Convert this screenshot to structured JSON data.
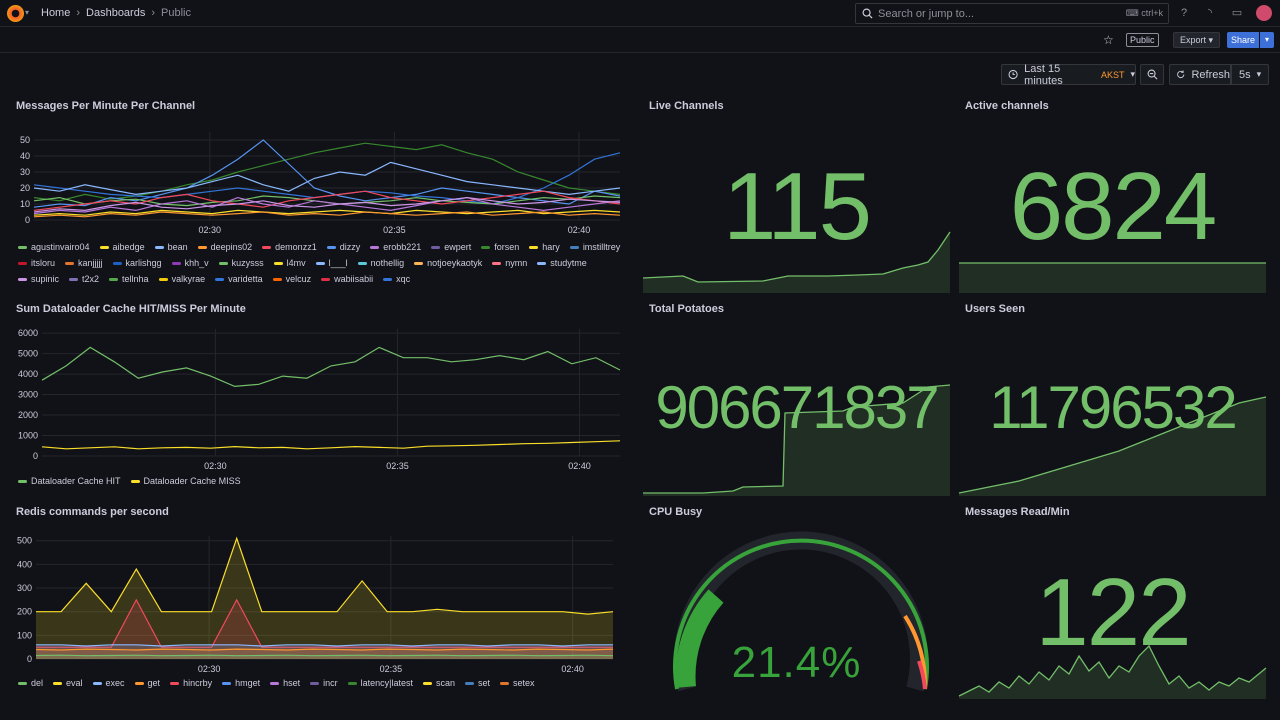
{
  "topbar": {
    "breadcrumb": [
      "Home",
      "Dashboards",
      "Public"
    ],
    "search_placeholder": "Search or jump to...",
    "search_shortcut": "ctrl+k"
  },
  "toolbar": {
    "public_tag": "Public",
    "export_label": "Export",
    "share_label": "Share",
    "time_range": "Last 15 minutes",
    "timezone": "AKST",
    "refresh_label": "Refresh",
    "refresh_interval": "5s"
  },
  "panels": {
    "messages": {
      "title": "Messages Per Minute Per Channel",
      "legend": [
        {
          "name": "agustinvairo04",
          "color": "#73bf69"
        },
        {
          "name": "aibedge",
          "color": "#fade2a"
        },
        {
          "name": "bean",
          "color": "#8ab8ff"
        },
        {
          "name": "deepins02",
          "color": "#ff9830"
        },
        {
          "name": "demonzz1",
          "color": "#f2495c"
        },
        {
          "name": "dizzy",
          "color": "#5794f2"
        },
        {
          "name": "erobb221",
          "color": "#b877d9"
        },
        {
          "name": "ewpert",
          "color": "#705da0"
        },
        {
          "name": "forsen",
          "color": "#37872d"
        },
        {
          "name": "hary",
          "color": "#fade2a"
        },
        {
          "name": "imstilltrey",
          "color": "#447ebc"
        },
        {
          "name": "itsloru",
          "color": "#c4162a"
        },
        {
          "name": "kanjjjjj",
          "color": "#e0752d"
        },
        {
          "name": "karlishgg",
          "color": "#1f60c4"
        },
        {
          "name": "khh_v",
          "color": "#8f3bb8"
        },
        {
          "name": "kuzysss",
          "color": "#73bf69"
        },
        {
          "name": "l4mv",
          "color": "#fade2a"
        },
        {
          "name": "l___l",
          "color": "#8ab8ff"
        },
        {
          "name": "nothellig",
          "color": "#5ac8d8"
        },
        {
          "name": "notjoeykaotyk",
          "color": "#ffb357"
        },
        {
          "name": "nymn",
          "color": "#ff7383"
        },
        {
          "name": "studytme",
          "color": "#8ab8ff"
        },
        {
          "name": "supinic",
          "color": "#ca95e5"
        },
        {
          "name": "t2x2",
          "color": "#806eb7"
        },
        {
          "name": "tellnha",
          "color": "#56a64b"
        },
        {
          "name": "valkyrae",
          "color": "#f2cc0c"
        },
        {
          "name": "varidetta",
          "color": "#3274d9"
        },
        {
          "name": "velcuz",
          "color": "#fa6400"
        },
        {
          "name": "wabiisabii",
          "color": "#e02f44"
        },
        {
          "name": "xqc",
          "color": "#3274d9"
        }
      ]
    },
    "cache": {
      "title": "Sum Dataloader Cache HIT/MISS Per Minute",
      "legend": [
        {
          "name": "Dataloader Cache HIT",
          "color": "#73bf69"
        },
        {
          "name": "Dataloader Cache MISS",
          "color": "#fade2a"
        }
      ]
    },
    "redis": {
      "title": "Redis commands per second",
      "legend": [
        {
          "name": "del",
          "color": "#73bf69"
        },
        {
          "name": "eval",
          "color": "#fade2a"
        },
        {
          "name": "exec",
          "color": "#8ab8ff"
        },
        {
          "name": "get",
          "color": "#ff9830"
        },
        {
          "name": "hincrby",
          "color": "#f2495c"
        },
        {
          "name": "hmget",
          "color": "#5794f2"
        },
        {
          "name": "hset",
          "color": "#b877d9"
        },
        {
          "name": "incr",
          "color": "#705da0"
        },
        {
          "name": "latency|latest",
          "color": "#37872d"
        },
        {
          "name": "scan",
          "color": "#fade2a"
        },
        {
          "name": "set",
          "color": "#447ebc"
        },
        {
          "name": "setex",
          "color": "#e0752d"
        }
      ]
    },
    "live_channels": {
      "title": "Live Channels",
      "value": "115"
    },
    "active_channels": {
      "title": "Active channels",
      "value": "6824"
    },
    "total_potatoes": {
      "title": "Total Potatoes",
      "value": "906671837"
    },
    "users_seen": {
      "title": "Users Seen",
      "value": "11796532"
    },
    "cpu_busy": {
      "title": "CPU Busy",
      "value": "21.4%",
      "percent": 21.4
    },
    "messages_read": {
      "title": "Messages Read/Min",
      "value": "122"
    }
  },
  "colors": {
    "green": "#73bf69",
    "yellow": "#fade2a",
    "orange": "#ff9830",
    "red": "#f2495c"
  },
  "chart_data": [
    {
      "type": "line",
      "title": "Messages Per Minute Per Channel",
      "yticks": [
        0,
        10,
        20,
        30,
        40,
        50
      ],
      "xticks": [
        "02:30",
        "02:35",
        "02:40"
      ],
      "ylim": [
        0,
        55
      ],
      "series": [
        {
          "name": "forsen",
          "values": [
            14,
            12,
            16,
            13,
            15,
            18,
            22,
            25,
            30,
            34,
            38,
            42,
            45,
            48,
            46,
            44,
            47,
            42,
            38,
            30,
            25,
            20,
            18,
            16
          ]
        },
        {
          "name": "dizzy",
          "values": [
            8,
            10,
            9,
            14,
            12,
            16,
            20,
            28,
            38,
            50,
            35,
            20,
            15,
            12,
            14,
            16,
            20,
            18,
            16,
            14,
            12,
            10,
            18,
            15
          ]
        },
        {
          "name": "xqc",
          "values": [
            22,
            20,
            18,
            16,
            15,
            14,
            16,
            18,
            20,
            18,
            16,
            14,
            16,
            18,
            17,
            15,
            14,
            12,
            10,
            14,
            20,
            28,
            38,
            42
          ]
        },
        {
          "name": "bean",
          "values": [
            20,
            18,
            22,
            19,
            16,
            18,
            20,
            24,
            28,
            22,
            18,
            26,
            30,
            28,
            36,
            32,
            28,
            24,
            22,
            20,
            18,
            16,
            18,
            20
          ]
        },
        {
          "name": "agustinvairo04",
          "values": [
            12,
            14,
            10,
            12,
            13,
            10,
            9,
            11,
            12,
            15,
            14,
            12,
            10,
            11,
            12,
            14,
            12,
            11,
            10,
            12,
            14,
            13,
            15,
            14
          ]
        },
        {
          "name": "demonzz1",
          "values": [
            6,
            8,
            10,
            12,
            10,
            14,
            16,
            12,
            10,
            8,
            12,
            14,
            16,
            18,
            14,
            12,
            10,
            12,
            14,
            16,
            18,
            14,
            12,
            10
          ]
        },
        {
          "name": "erobb221",
          "values": [
            4,
            6,
            5,
            8,
            6,
            10,
            12,
            8,
            14,
            10,
            8,
            12,
            10,
            8,
            6,
            9,
            12,
            14,
            10,
            8,
            6,
            8,
            10,
            12
          ]
        },
        {
          "name": "hary",
          "values": [
            3,
            4,
            3,
            5,
            4,
            6,
            5,
            4,
            6,
            5,
            4,
            5,
            6,
            5,
            4,
            6,
            5,
            4,
            5,
            6,
            4,
            5,
            6,
            5
          ]
        },
        {
          "name": "deepins02",
          "values": [
            2,
            3,
            2,
            4,
            3,
            5,
            4,
            3,
            4,
            5,
            3,
            4,
            3,
            5,
            4,
            3,
            4,
            5,
            3,
            4,
            5,
            3,
            4,
            3
          ]
        },
        {
          "name": "supinic",
          "values": [
            5,
            7,
            6,
            9,
            11,
            8,
            7,
            9,
            10,
            12,
            9,
            8,
            10,
            11,
            9,
            10,
            12,
            14,
            12,
            10,
            11,
            13,
            12,
            11
          ]
        }
      ]
    },
    {
      "type": "line",
      "title": "Sum Dataloader Cache HIT/MISS Per Minute",
      "yticks": [
        0,
        1000,
        2000,
        3000,
        4000,
        5000,
        6000
      ],
      "xticks": [
        "02:30",
        "02:35",
        "02:40"
      ],
      "ylim": [
        0,
        6200
      ],
      "series": [
        {
          "name": "Dataloader Cache HIT",
          "values": [
            3700,
            4400,
            5300,
            4600,
            3800,
            4100,
            4300,
            3900,
            3400,
            3500,
            3900,
            3800,
            4400,
            4600,
            5300,
            4800,
            4800,
            4600,
            4700,
            4900,
            4700,
            5100,
            4500,
            4800,
            4200
          ]
        },
        {
          "name": "Dataloader Cache MISS",
          "values": [
            450,
            350,
            400,
            450,
            350,
            400,
            420,
            380,
            460,
            400,
            420,
            350,
            400,
            460,
            420,
            380,
            480,
            500,
            520,
            560,
            600,
            620,
            660,
            700,
            740
          ]
        }
      ]
    },
    {
      "type": "area",
      "title": "Redis commands per second",
      "yticks": [
        0,
        100,
        200,
        300,
        400,
        500
      ],
      "xticks": [
        "02:30",
        "02:35",
        "02:40"
      ],
      "ylim": [
        0,
        520
      ],
      "series": [
        {
          "name": "eval",
          "values": [
            200,
            200,
            320,
            200,
            380,
            200,
            200,
            200,
            510,
            200,
            200,
            200,
            200,
            330,
            200,
            200,
            210,
            200,
            200,
            200,
            200,
            200,
            190,
            200
          ]
        },
        {
          "name": "hincrby",
          "values": [
            50,
            50,
            50,
            50,
            250,
            50,
            50,
            50,
            250,
            50,
            50,
            50,
            50,
            50,
            50,
            50,
            50,
            50,
            50,
            50,
            50,
            50,
            50,
            50
          ]
        },
        {
          "name": "exec",
          "values": [
            60,
            60,
            55,
            60,
            60,
            55,
            60,
            60,
            60,
            55,
            60,
            60,
            55,
            60,
            60,
            55,
            60,
            60,
            55,
            60,
            60,
            55,
            60,
            60
          ]
        },
        {
          "name": "get",
          "values": [
            40,
            38,
            42,
            40,
            38,
            42,
            40,
            38,
            42,
            40,
            38,
            42,
            40,
            38,
            42,
            40,
            38,
            42,
            40,
            38,
            42,
            40,
            38,
            42
          ]
        },
        {
          "name": "del",
          "values": [
            15,
            16,
            14,
            15,
            16,
            14,
            15,
            16,
            14,
            15,
            16,
            14,
            15,
            16,
            14,
            15,
            16,
            14,
            15,
            16,
            14,
            15,
            16,
            14
          ]
        }
      ]
    }
  ]
}
